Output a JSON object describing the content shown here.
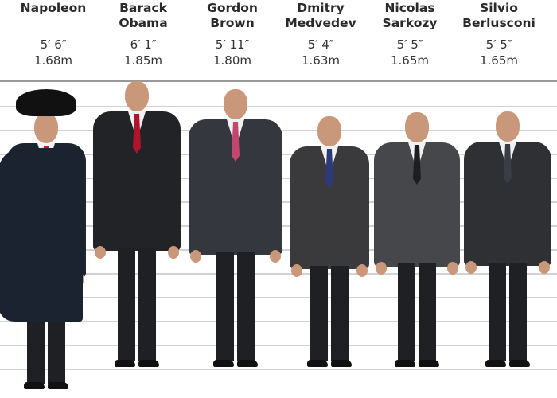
{
  "people": [
    {
      "name_line1": "Napoleon",
      "name_line2": "",
      "height_imperial": "5′ 6″",
      "height_metric": "1.68m",
      "suit_color": "#1e2430",
      "tie_color": "#b3202a"
    },
    {
      "name_line1": "Barack",
      "name_line2": "Obama",
      "height_imperial": "6′ 1″",
      "height_metric": "1.85m",
      "suit_color": "#222327",
      "tie_color": "#b0142a"
    },
    {
      "name_line1": "Gordon",
      "name_line2": "Brown",
      "height_imperial": "5′ 11″",
      "height_metric": "1.80m",
      "suit_color": "#34373d",
      "tie_color": "#c2466e"
    },
    {
      "name_line1": "Dmitry",
      "name_line2": "Medvedev",
      "height_imperial": "5′ 4″",
      "height_metric": "1.63m",
      "suit_color": "#3a3a3c",
      "tie_color": "#2c3a7a"
    },
    {
      "name_line1": "Nicolas",
      "name_line2": "Sarkozy",
      "height_imperial": "5′ 5″",
      "height_metric": "1.65m",
      "suit_color": "#45474b",
      "tie_color": "#1e1e22"
    },
    {
      "name_line1": "Silvio",
      "name_line2": "Berlusconi",
      "height_imperial": "5′ 5″",
      "height_metric": "1.65m",
      "suit_color": "#2e3034",
      "tie_color": "#3a3d45"
    }
  ]
}
